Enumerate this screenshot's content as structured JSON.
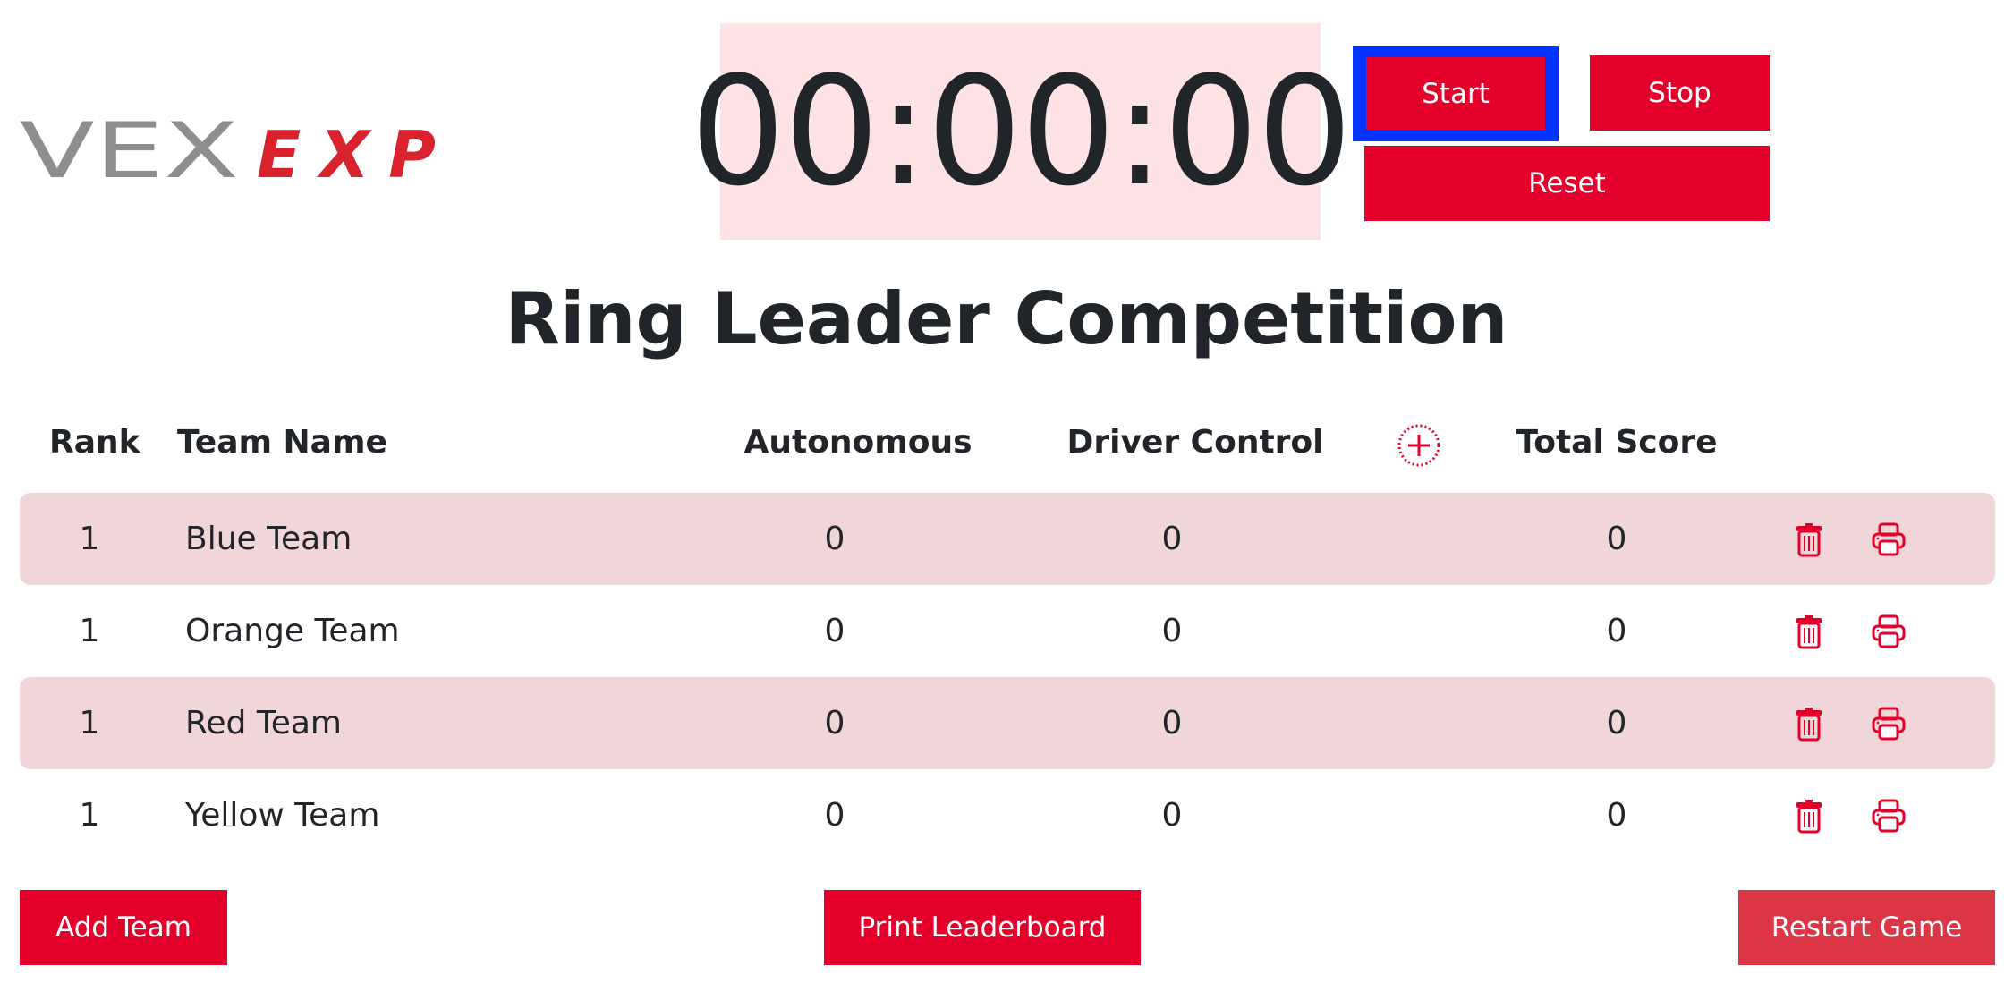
{
  "logo": {
    "brand": "VEX",
    "product": "EXP"
  },
  "timer": {
    "display": "00:00:00"
  },
  "controls": {
    "start": "Start",
    "stop": "Stop",
    "reset": "Reset"
  },
  "title": "Ring Leader Competition",
  "table": {
    "headers": {
      "rank": "Rank",
      "team_name": "Team Name",
      "autonomous": "Autonomous",
      "driver_control": "Driver Control",
      "total_score": "Total Score"
    },
    "rows": [
      {
        "rank": "1",
        "name": "Blue Team",
        "autonomous": "0",
        "driver_control": "0",
        "total": "0"
      },
      {
        "rank": "1",
        "name": "Orange Team",
        "autonomous": "0",
        "driver_control": "0",
        "total": "0"
      },
      {
        "rank": "1",
        "name": "Red Team",
        "autonomous": "0",
        "driver_control": "0",
        "total": "0"
      },
      {
        "rank": "1",
        "name": "Yellow Team",
        "autonomous": "0",
        "driver_control": "0",
        "total": "0"
      }
    ]
  },
  "footer": {
    "add_team": "Add Team",
    "print_leaderboard": "Print Leaderboard",
    "restart_game": "Restart Game"
  },
  "colors": {
    "accent": "#e4002b",
    "timer_bg": "#fde3e6",
    "row_shade": "#f1d6d9",
    "focus_outline": "#0433ff",
    "restart": "#dc3545"
  }
}
